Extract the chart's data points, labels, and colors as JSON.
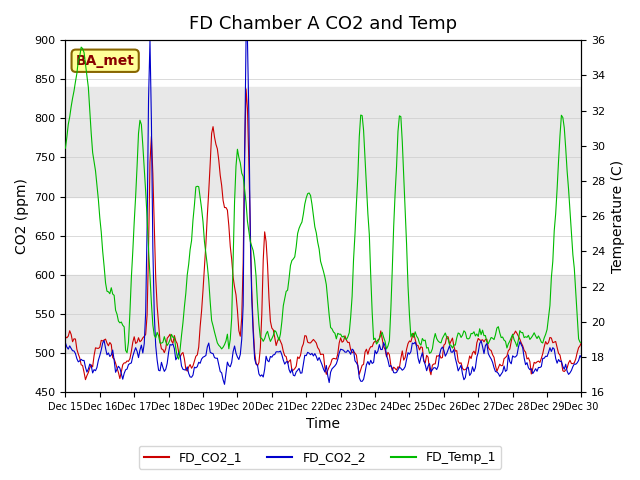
{
  "title": "FD Chamber A CO2 and Temp",
  "xlabel": "Time",
  "ylabel_left": "CO2 (ppm)",
  "ylabel_right": "Temperature (C)",
  "annotation": "BA_met",
  "ylim_left": [
    450,
    900
  ],
  "ylim_right": [
    16,
    36
  ],
  "yticks_left": [
    450,
    500,
    550,
    600,
    650,
    700,
    750,
    800,
    850,
    900
  ],
  "yticks_right": [
    16,
    18,
    20,
    22,
    24,
    26,
    28,
    30,
    32,
    34,
    36
  ],
  "legend_labels": [
    "FD_CO2_1",
    "FD_CO2_2",
    "FD_Temp_1"
  ],
  "legend_colors": [
    "#cc0000",
    "#0000cc",
    "#00bb00"
  ],
  "line_colors": [
    "#cc0000",
    "#0000cc",
    "#00bb00"
  ],
  "bg_band_color": "#e8e8e8",
  "bg_band_ranges": [
    [
      500,
      600
    ],
    [
      700,
      840
    ]
  ],
  "title_fontsize": 13,
  "axis_fontsize": 10,
  "tick_fontsize": 8,
  "annotation_fontsize": 10,
  "annotation_bg": "#ffff99",
  "annotation_border": "#886600",
  "annotation_text_color": "#880000"
}
